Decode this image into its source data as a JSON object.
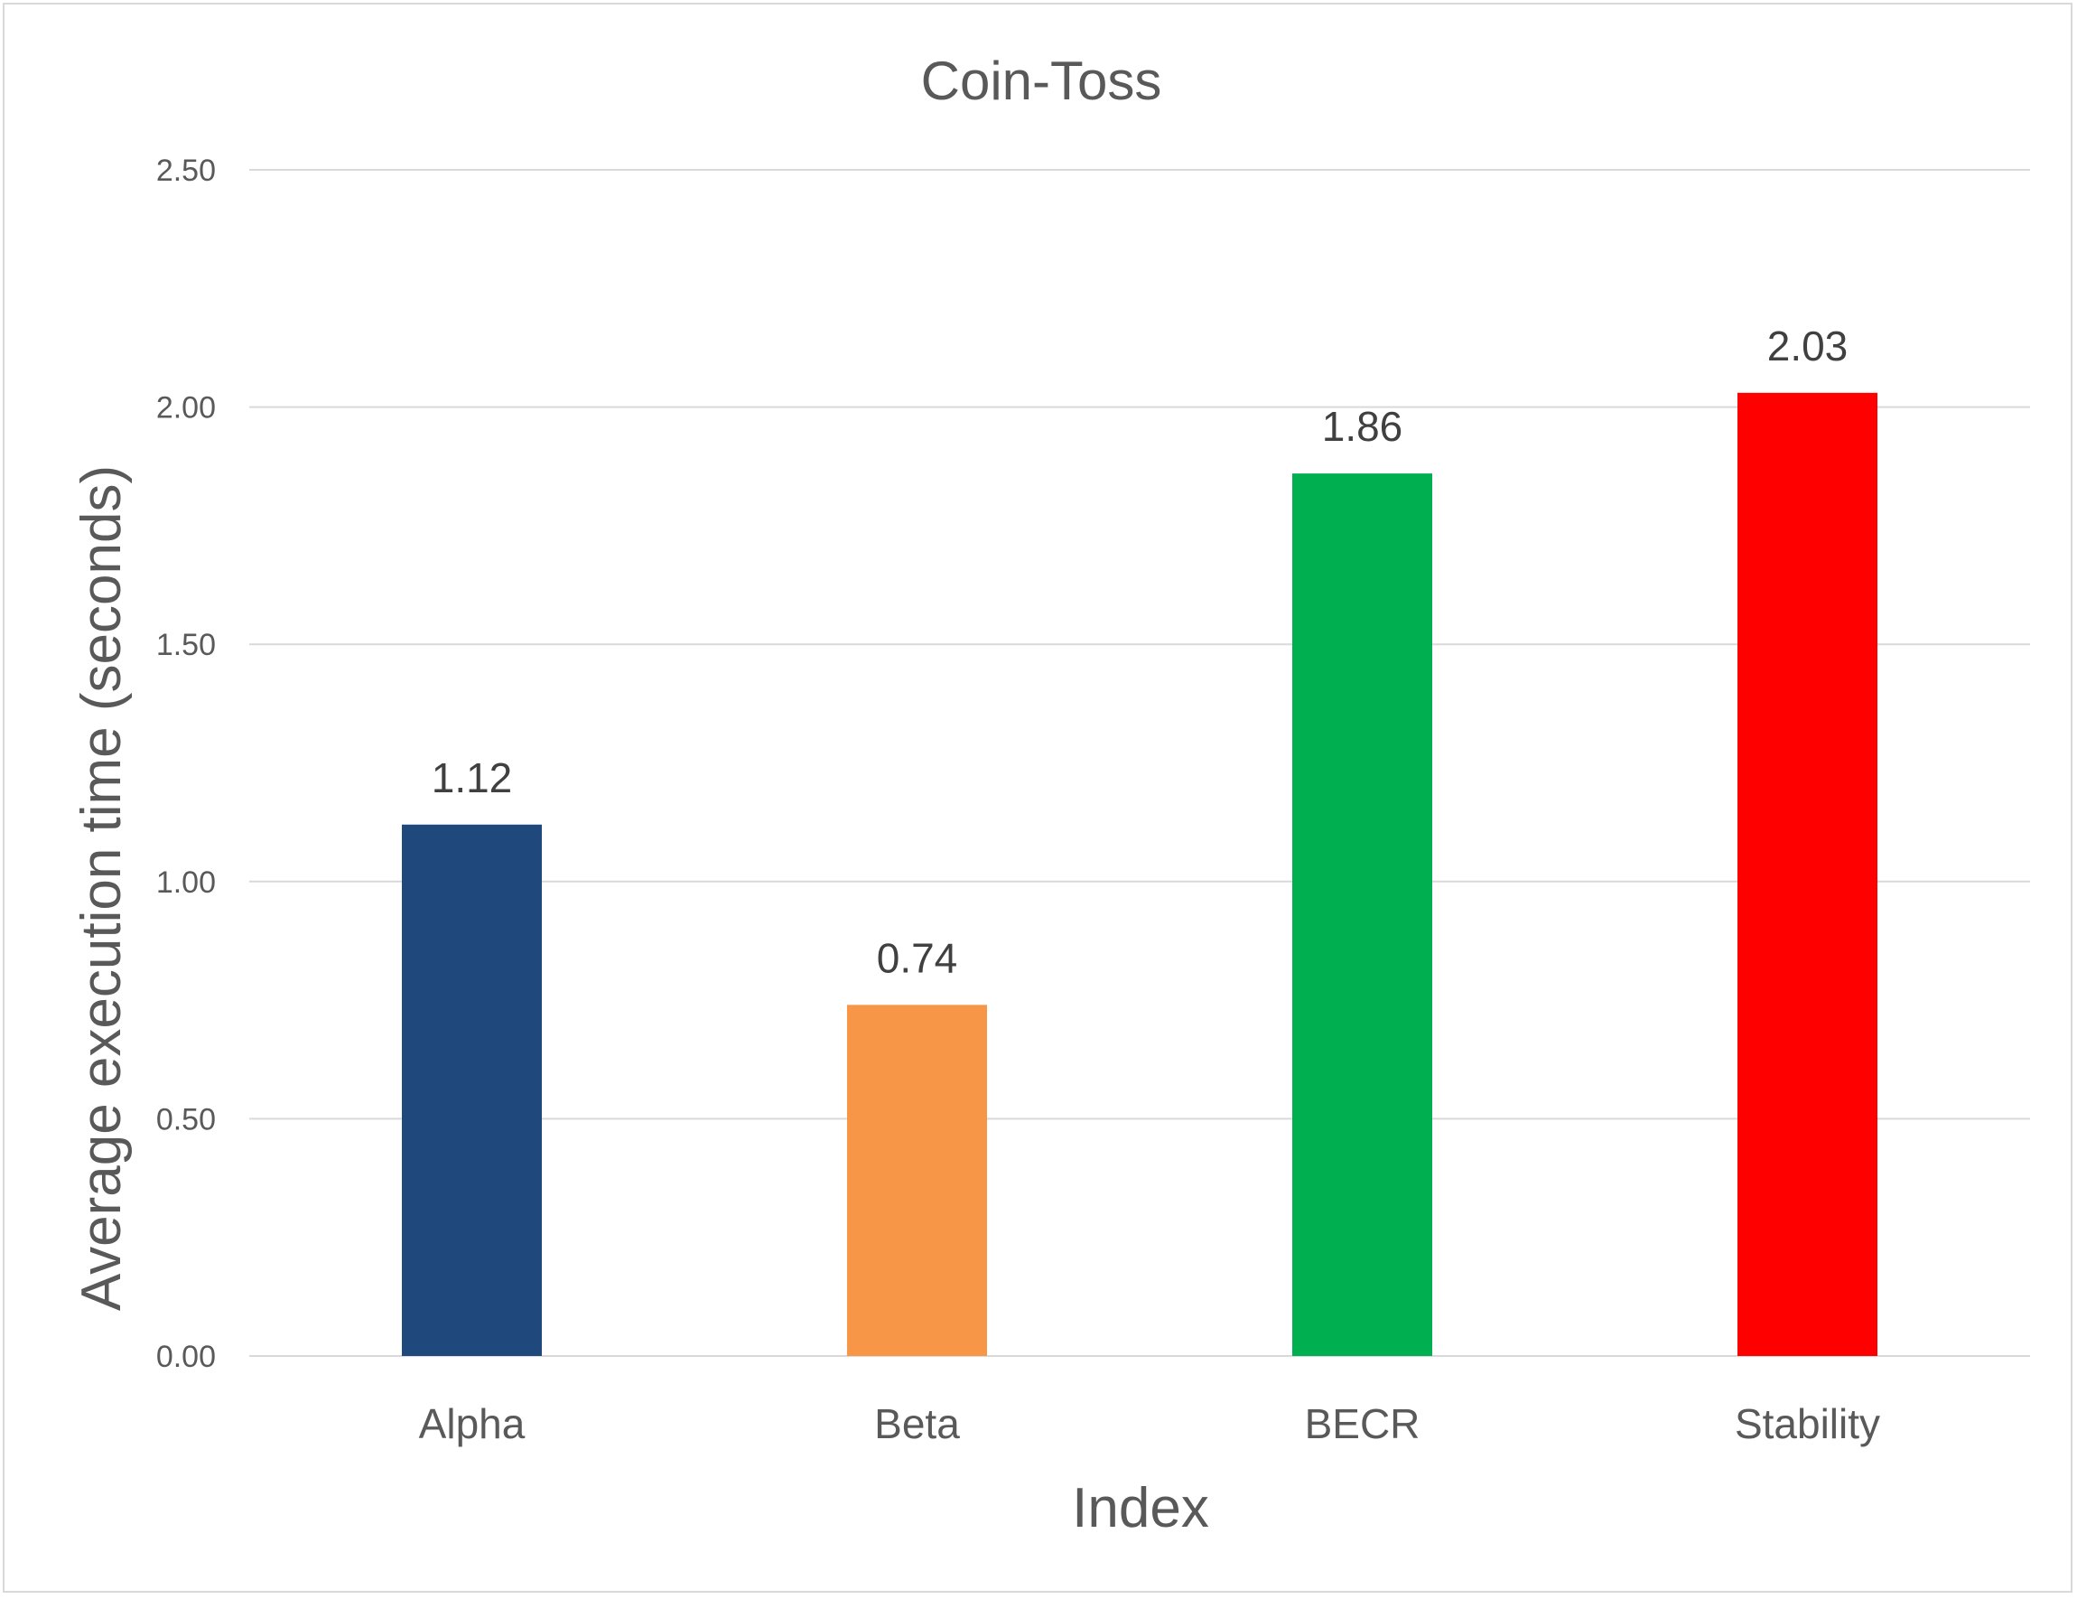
{
  "chart_data": {
    "type": "bar",
    "title": "Coin-Toss",
    "xlabel": "Index",
    "ylabel": "Average execution time (seconds)",
    "categories": [
      "Alpha",
      "Beta",
      "BECR",
      "Stability"
    ],
    "values": [
      1.12,
      0.74,
      1.86,
      2.03
    ],
    "data_labels": [
      "1.12",
      "0.74",
      "1.86",
      "2.03"
    ],
    "colors": [
      "#1f497d",
      "#f79646",
      "#00b050",
      "#ff0000"
    ],
    "ylim": [
      0,
      2.5
    ],
    "yticks": [
      "0.00",
      "0.50",
      "1.00",
      "1.50",
      "2.00",
      "2.50"
    ],
    "grid": true,
    "legend": "none"
  }
}
